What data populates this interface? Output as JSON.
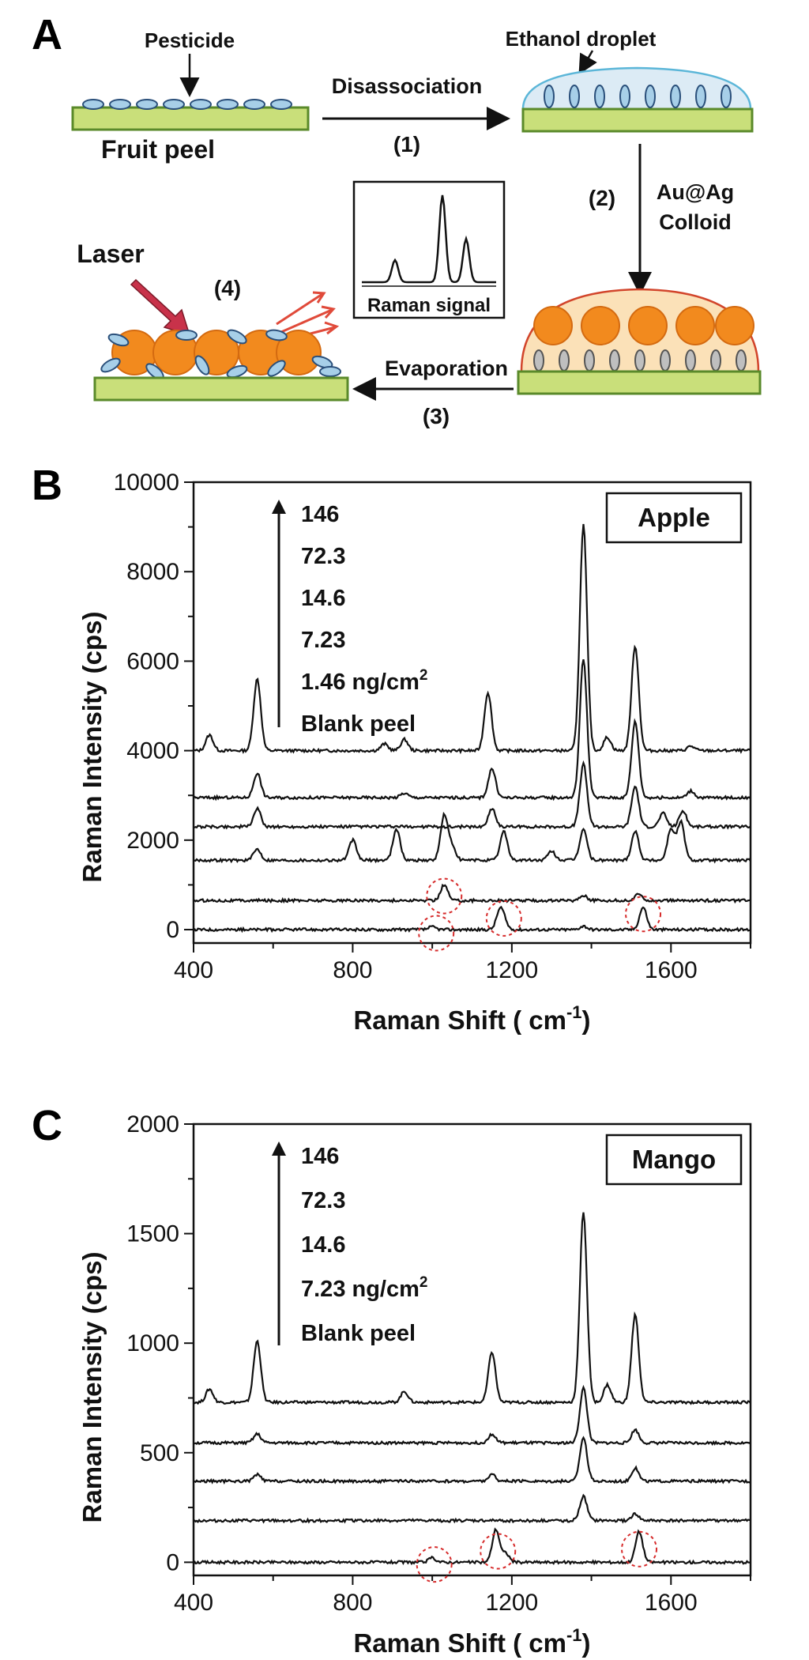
{
  "panels": {
    "a_letter": "A",
    "b_letter": "B",
    "c_letter": "C"
  },
  "schematic": {
    "pesticide_label": "Pesticide",
    "fruit_peel_label": "Fruit peel",
    "ethanol_label": "Ethanol droplet",
    "step1_label": "Disassociation",
    "step1_num": "(1)",
    "step2_num": "(2)",
    "step2_label_line1": "Au@Ag",
    "step2_label_line2": "Colloid",
    "step3_label": "Evaporation",
    "step3_num": "(3)",
    "step4_num": "(4)",
    "laser_label": "Laser",
    "raman_box_label": "Raman signal",
    "colors": {
      "peel_fill": "#c9df7a",
      "peel_stroke": "#5a8a2a",
      "pesticide_fill": "#a7cfe8",
      "pesticide_stroke": "#2a4f7a",
      "droplet_fill": "#dcebf5",
      "droplet_stroke": "#5bb6d8",
      "colloid_fill": "#fbe1b8",
      "colloid_stroke": "#d2452b",
      "particle_fill": "#f28a1e",
      "laser_arrow": "#c8324a",
      "scatter_arrow": "#e04a3a"
    }
  },
  "chart_data": [
    {
      "panel": "B",
      "type": "line",
      "box_label": "Apple",
      "xlabel": "Raman Shift ( cm-1)",
      "ylabel": "Raman Intensity (cps)",
      "xlim": [
        400,
        1800
      ],
      "ylim": [
        -300,
        10000
      ],
      "xticks": [
        400,
        800,
        1200,
        1600
      ],
      "yticks": [
        0,
        2000,
        4000,
        6000,
        8000,
        10000
      ],
      "legend": [
        "146",
        "72.3",
        "14.6",
        "7.23",
        "1.46 ng/cm2",
        "Blank peel"
      ],
      "unit_sup": "2",
      "grid": false,
      "highlight_circles": [
        {
          "x": 1030,
          "y": 750
        },
        {
          "x": 1010,
          "y": -80
        },
        {
          "x": 1180,
          "y": 250
        },
        {
          "x": 1530,
          "y": 350
        }
      ],
      "series": [
        {
          "baseline": 4000,
          "peaks": [
            [
              440,
              350
            ],
            [
              560,
              1600
            ],
            [
              880,
              150
            ],
            [
              930,
              250
            ],
            [
              1140,
              1300
            ],
            [
              1380,
              5050
            ],
            [
              1440,
              300
            ],
            [
              1510,
              2350
            ],
            [
              1650,
              100
            ]
          ]
        },
        {
          "baseline": 2950,
          "peaks": [
            [
              560,
              550
            ],
            [
              930,
              100
            ],
            [
              1150,
              650
            ],
            [
              1380,
              3100
            ],
            [
              1510,
              1700
            ],
            [
              1650,
              150
            ]
          ]
        },
        {
          "baseline": 2300,
          "peaks": [
            [
              560,
              400
            ],
            [
              1150,
              400
            ],
            [
              1380,
              1400
            ],
            [
              1510,
              900
            ],
            [
              1580,
              300
            ],
            [
              1630,
              350
            ]
          ]
        },
        {
          "baseline": 1550,
          "peaks": [
            [
              560,
              250
            ],
            [
              800,
              450
            ],
            [
              910,
              700
            ],
            [
              1030,
              1000
            ],
            [
              1050,
              300
            ],
            [
              1180,
              650
            ],
            [
              1300,
              200
            ],
            [
              1380,
              700
            ],
            [
              1510,
              650
            ],
            [
              1600,
              700
            ],
            [
              1625,
              850
            ]
          ]
        },
        {
          "baseline": 650,
          "peaks": [
            [
              1030,
              350
            ],
            [
              1380,
              120
            ],
            [
              1520,
              150
            ]
          ]
        },
        {
          "baseline": 0,
          "peaks": [
            [
              1000,
              60
            ],
            [
              1170,
              400
            ],
            [
              1180,
              150
            ],
            [
              1380,
              80
            ],
            [
              1530,
              500
            ]
          ]
        }
      ]
    },
    {
      "panel": "C",
      "type": "line",
      "box_label": "Mango",
      "xlabel": "Raman Shift ( cm-1)",
      "ylabel": "Raman Intensity (cps)",
      "xlim": [
        400,
        1800
      ],
      "ylim": [
        -60,
        2000
      ],
      "xticks": [
        400,
        800,
        1200,
        1600
      ],
      "yticks": [
        0,
        500,
        1000,
        1500,
        2000
      ],
      "legend": [
        "146",
        "72.3",
        "14.6",
        "7.23 ng/cm2",
        "Blank peel"
      ],
      "unit_sup": "2",
      "grid": false,
      "highlight_circles": [
        {
          "x": 1005,
          "y": -10
        },
        {
          "x": 1165,
          "y": 50
        },
        {
          "x": 1520,
          "y": 60
        }
      ],
      "series": [
        {
          "baseline": 730,
          "peaks": [
            [
              440,
              60
            ],
            [
              560,
              280
            ],
            [
              930,
              50
            ],
            [
              1150,
              230
            ],
            [
              1380,
              870
            ],
            [
              1440,
              80
            ],
            [
              1510,
              400
            ]
          ]
        },
        {
          "baseline": 545,
          "peaks": [
            [
              560,
              40
            ],
            [
              1150,
              40
            ],
            [
              1380,
              250
            ],
            [
              1510,
              60
            ]
          ]
        },
        {
          "baseline": 370,
          "peaks": [
            [
              560,
              30
            ],
            [
              1150,
              30
            ],
            [
              1380,
              200
            ],
            [
              1510,
              60
            ]
          ]
        },
        {
          "baseline": 190,
          "peaks": [
            [
              1380,
              110
            ],
            [
              1510,
              30
            ]
          ]
        },
        {
          "baseline": 0,
          "peaks": [
            [
              1000,
              20
            ],
            [
              1160,
              150
            ],
            [
              1185,
              40
            ],
            [
              1520,
              140
            ]
          ]
        }
      ]
    }
  ]
}
